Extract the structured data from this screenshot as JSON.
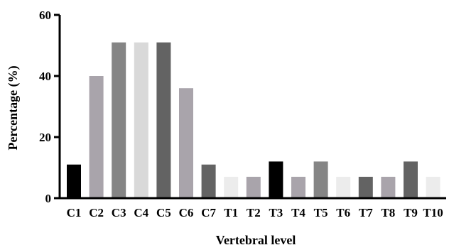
{
  "chart_data": {
    "type": "bar",
    "title": "",
    "xlabel": "Vertebral level",
    "ylabel": "Percentage (%)",
    "ylim": [
      0,
      60
    ],
    "yticks": [
      0,
      20,
      40,
      60
    ],
    "grid": false,
    "categories": [
      "C1",
      "C2",
      "C3",
      "C4",
      "C5",
      "C6",
      "C7",
      "T1",
      "T2",
      "T3",
      "T4",
      "T5",
      "T6",
      "T7",
      "T8",
      "T9",
      "T10"
    ],
    "values": [
      11,
      40,
      51,
      51,
      51,
      36,
      11,
      7,
      7,
      12,
      7,
      12,
      7,
      7,
      7,
      12,
      7
    ],
    "colors": [
      "#000000",
      "#a9a4ab",
      "#858585",
      "#d9d9d9",
      "#636363",
      "#a9a4ab",
      "#636363",
      "#ececec",
      "#a9a4ab",
      "#000000",
      "#a9a4ab",
      "#858585",
      "#ececec",
      "#636363",
      "#a9a4ab",
      "#636363",
      "#ececec"
    ]
  }
}
